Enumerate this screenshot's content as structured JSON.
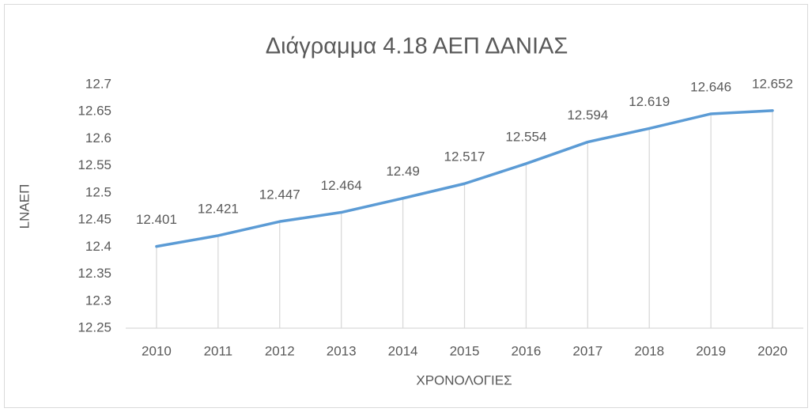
{
  "chart_data": {
    "type": "line",
    "title": "Διάγραμμα 4.18 ΑΕΠ ΔΑΝΙΑΣ",
    "x_label": "ΧΡΟΝΟΛΟΓΙΕΣ",
    "y_label": "LNAEΠ",
    "categories": [
      "2010",
      "2011",
      "2012",
      "2013",
      "2014",
      "2015",
      "2016",
      "2017",
      "2018",
      "2019",
      "2020"
    ],
    "series": [
      {
        "name": "LNAEΠ",
        "color": "#5b9bd5",
        "values": [
          12.401,
          12.421,
          12.447,
          12.464,
          12.49,
          12.517,
          12.554,
          12.594,
          12.619,
          12.646,
          12.652
        ]
      }
    ],
    "ylim": [
      12.25,
      12.7
    ],
    "yticks": [
      12.25,
      12.3,
      12.35,
      12.4,
      12.45,
      12.5,
      12.55,
      12.6,
      12.65,
      12.7
    ],
    "drop_lines": true
  }
}
